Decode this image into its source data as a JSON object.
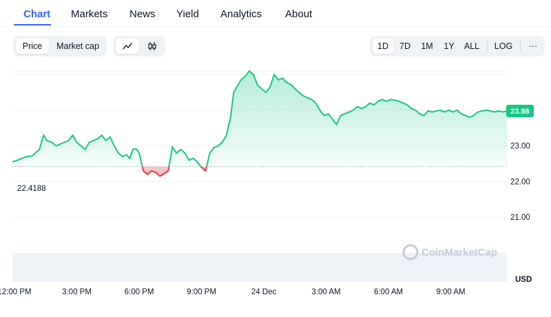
{
  "tabs": [
    {
      "label": "Chart",
      "active": true
    },
    {
      "label": "Markets"
    },
    {
      "label": "News"
    },
    {
      "label": "Yield"
    },
    {
      "label": "Analytics"
    },
    {
      "label": "About"
    }
  ],
  "view_toggle": {
    "price": "Price",
    "market_cap": "Market cap",
    "selected": "Price"
  },
  "chart_style": {
    "line_icon": "line-chart-icon",
    "candle_icon": "candlestick-icon",
    "selected": "line"
  },
  "ranges": {
    "items": [
      "1D",
      "7D",
      "1M",
      "1Y",
      "ALL"
    ],
    "selected": "1D",
    "log": "LOG",
    "more": "···"
  },
  "colors": {
    "up": "#16c784",
    "down": "#ea3943",
    "accent": "#3861fb"
  },
  "chart_data": {
    "type": "area",
    "baseline": 22.4188,
    "baseline_label": "22.4188",
    "current_label": "23.98",
    "y_ticks": [
      "23.00",
      "22.00",
      "21.00"
    ],
    "y_tick_values": [
      23.0,
      22.0,
      21.0
    ],
    "ylim": [
      20.0,
      25.1
    ],
    "currency": "USD",
    "x_ticks": [
      "12:00 PM",
      "3:00 PM",
      "6:00 PM",
      "9:00 PM",
      "24 Dec",
      "3:00 AM",
      "6:00 AM",
      "9:00 AM"
    ],
    "x_tick_hours": [
      0,
      3,
      6,
      9,
      12,
      15,
      18,
      21
    ],
    "xlim_hours": [
      -0.1,
      23.7
    ],
    "grid": true,
    "watermark": "CoinMarketCap",
    "x_hours": [
      -0.1,
      0.15,
      0.35,
      0.6,
      0.85,
      1.0,
      1.2,
      1.4,
      1.55,
      1.8,
      2.0,
      2.2,
      2.4,
      2.6,
      2.8,
      3.0,
      3.2,
      3.4,
      3.6,
      3.8,
      4.0,
      4.2,
      4.4,
      4.6,
      4.8,
      5.0,
      5.2,
      5.4,
      5.55,
      5.7,
      5.85,
      6.0,
      6.2,
      6.4,
      6.6,
      6.8,
      7.0,
      7.2,
      7.4,
      7.6,
      7.8,
      8.0,
      8.2,
      8.4,
      8.6,
      8.8,
      9.0,
      9.2,
      9.4,
      9.6,
      9.8,
      10.0,
      10.2,
      10.4,
      10.55,
      10.7,
      10.9,
      11.1,
      11.3,
      11.5,
      11.7,
      11.9,
      12.1,
      12.3,
      12.5,
      12.7,
      12.9,
      13.05,
      13.2,
      13.35,
      13.5,
      13.7,
      13.9,
      14.1,
      14.3,
      14.5,
      14.7,
      14.9,
      15.1,
      15.3,
      15.5,
      15.7,
      15.9,
      16.1,
      16.3,
      16.5,
      16.7,
      16.9,
      17.1,
      17.3,
      17.5,
      17.7,
      17.9,
      18.1,
      18.3,
      18.5,
      18.7,
      18.9,
      19.1,
      19.3,
      19.5,
      19.7,
      19.9,
      20.1,
      20.3,
      20.5,
      20.7,
      20.9,
      21.1,
      21.3,
      21.5,
      21.7,
      21.9,
      22.1,
      22.3,
      22.5,
      22.7,
      22.9,
      23.1,
      23.3,
      23.5,
      23.7
    ],
    "y": [
      22.55,
      22.6,
      22.65,
      22.7,
      22.72,
      22.8,
      22.9,
      23.3,
      23.15,
      23.1,
      23.0,
      23.05,
      23.1,
      23.15,
      23.3,
      23.1,
      23.0,
      22.9,
      23.1,
      23.15,
      23.2,
      23.3,
      23.15,
      23.25,
      23.0,
      22.8,
      22.7,
      22.75,
      22.65,
      22.9,
      22.92,
      22.8,
      22.3,
      22.2,
      22.3,
      22.25,
      22.15,
      22.22,
      22.3,
      22.97,
      22.8,
      22.9,
      22.8,
      22.6,
      22.65,
      22.55,
      22.4,
      22.3,
      22.8,
      22.95,
      23.0,
      23.1,
      23.3,
      23.8,
      24.5,
      24.65,
      24.85,
      24.95,
      25.1,
      25.0,
      24.7,
      24.6,
      24.5,
      24.65,
      25.0,
      24.85,
      24.9,
      24.8,
      24.75,
      24.7,
      24.6,
      24.5,
      24.4,
      24.35,
      24.3,
      24.2,
      24.0,
      23.85,
      23.9,
      23.75,
      23.6,
      23.85,
      23.9,
      23.95,
      24.0,
      24.1,
      24.05,
      24.1,
      24.2,
      24.15,
      24.25,
      24.3,
      24.25,
      24.3,
      24.28,
      24.25,
      24.2,
      24.15,
      24.05,
      24.0,
      23.9,
      23.85,
      23.98,
      23.95,
      23.98,
      24.0,
      23.95,
      24.0,
      23.95,
      24.0,
      23.9,
      23.85,
      23.8,
      23.85,
      23.95,
      23.98,
      24.0,
      23.98,
      23.95,
      23.98,
      23.95,
      23.98
    ]
  }
}
